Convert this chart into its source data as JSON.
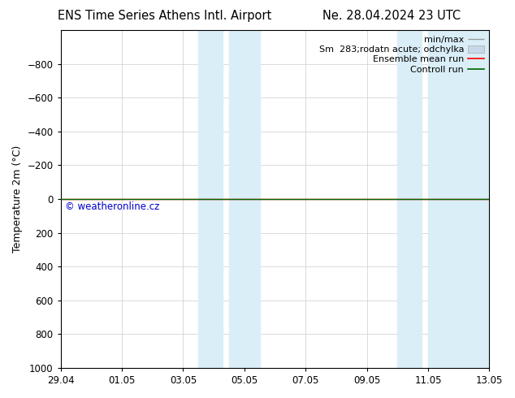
{
  "title_left": "ENS Time Series Athens Intl. Airport",
  "title_right": "Ne. 28.04.2024 23 UTC",
  "ylabel": "Temperature 2m (°C)",
  "watermark": "© weatheronline.cz",
  "ylim_top": -1000,
  "ylim_bottom": 1000,
  "yticks": [
    -800,
    -600,
    -400,
    -200,
    0,
    200,
    400,
    600,
    800,
    1000
  ],
  "x_start_days": 0,
  "x_end_days": 14,
  "xtick_labels": [
    "29.04",
    "01.05",
    "03.05",
    "05.05",
    "07.05",
    "09.05",
    "11.05",
    "13.05"
  ],
  "xtick_positions": [
    0,
    2,
    4,
    6,
    8,
    10,
    12,
    14
  ],
  "shade_regions": [
    [
      4.5,
      5.3
    ],
    [
      5.5,
      6.5
    ],
    [
      11.0,
      11.8
    ],
    [
      12.0,
      14.0
    ]
  ],
  "shade_color": "#daeef8",
  "ensemble_mean_color": "#ff0000",
  "control_run_color": "#006400",
  "minmax_color": "#999999",
  "spread_color": "#c8d8e8",
  "background_color": "#ffffff",
  "plot_bg_color": "#ffffff",
  "grid_color": "#cccccc",
  "title_fontsize": 10.5,
  "axis_fontsize": 9,
  "tick_fontsize": 8.5,
  "legend_fontsize": 8,
  "line_y": 0
}
